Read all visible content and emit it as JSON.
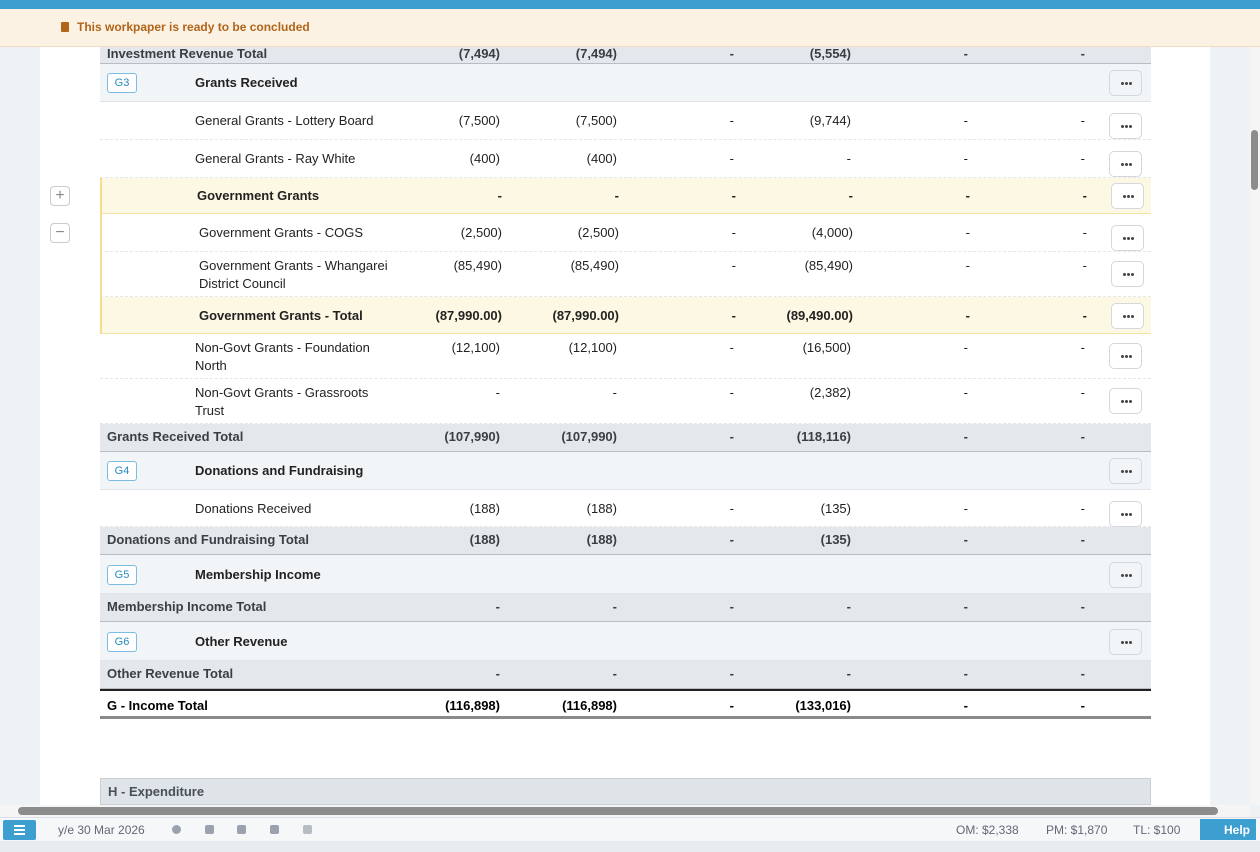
{
  "banner": {
    "message": "This workpaper is ready to be concluded"
  },
  "table": {
    "rows": [
      {
        "label": "Investment Revenue Total",
        "values": [
          "(7,494)",
          "(7,494)",
          "-",
          "(5,554)",
          "-",
          "-"
        ]
      },
      {
        "code": "G3",
        "label": "Grants Received"
      },
      {
        "label": "General Grants - Lottery Board",
        "values": [
          "(7,500)",
          "(7,500)",
          "-",
          "(9,744)",
          "-",
          "-"
        ]
      },
      {
        "label": "General Grants - Ray White",
        "values": [
          "(400)",
          "(400)",
          "-",
          "-",
          "-",
          "-"
        ]
      },
      {
        "label": "Government Grants",
        "values": [
          "-",
          "-",
          "-",
          "-",
          "-",
          "-"
        ]
      },
      {
        "label": "Government Grants - COGS",
        "values": [
          "(2,500)",
          "(2,500)",
          "-",
          "(4,000)",
          "-",
          "-"
        ]
      },
      {
        "label": "Government Grants - Whangarei District Council",
        "values": [
          "(85,490)",
          "(85,490)",
          "-",
          "(85,490)",
          "-",
          "-"
        ]
      },
      {
        "label": "Government Grants - Total",
        "values": [
          "(87,990.00)",
          "(87,990.00)",
          "-",
          "(89,490.00)",
          "-",
          "-"
        ]
      },
      {
        "label": "Non-Govt Grants - Foundation North",
        "values": [
          "(12,100)",
          "(12,100)",
          "-",
          "(16,500)",
          "-",
          "-"
        ]
      },
      {
        "label": "Non-Govt Grants - Grassroots Trust",
        "values": [
          "-",
          "-",
          "-",
          "(2,382)",
          "-",
          "-"
        ]
      },
      {
        "label": "Grants Received Total",
        "values": [
          "(107,990)",
          "(107,990)",
          "-",
          "(118,116)",
          "-",
          "-"
        ]
      },
      {
        "code": "G4",
        "label": "Donations and Fundraising"
      },
      {
        "label": "Donations Received",
        "values": [
          "(188)",
          "(188)",
          "-",
          "(135)",
          "-",
          "-"
        ]
      },
      {
        "label": "Donations and Fundraising Total",
        "values": [
          "(188)",
          "(188)",
          "-",
          "(135)",
          "-",
          "-"
        ]
      },
      {
        "code": "G5",
        "label": "Membership Income"
      },
      {
        "label": "Membership Income Total",
        "values": [
          "-",
          "-",
          "-",
          "-",
          "-",
          "-"
        ]
      },
      {
        "code": "G6",
        "label": "Other Revenue"
      },
      {
        "label": "Other Revenue Total",
        "values": [
          "-",
          "-",
          "-",
          "-",
          "-",
          "-"
        ]
      },
      {
        "label": "G - Income Total",
        "values": [
          "(116,898)",
          "(116,898)",
          "-",
          "(133,016)",
          "-",
          "-"
        ]
      },
      {
        "label": "H - Expenditure"
      }
    ]
  },
  "status_bar": {
    "period": "y/e 30 Mar 2026",
    "om": "OM: $2,338",
    "pm": "PM: $1,870",
    "tl": "TL: $100",
    "help": "Help"
  }
}
